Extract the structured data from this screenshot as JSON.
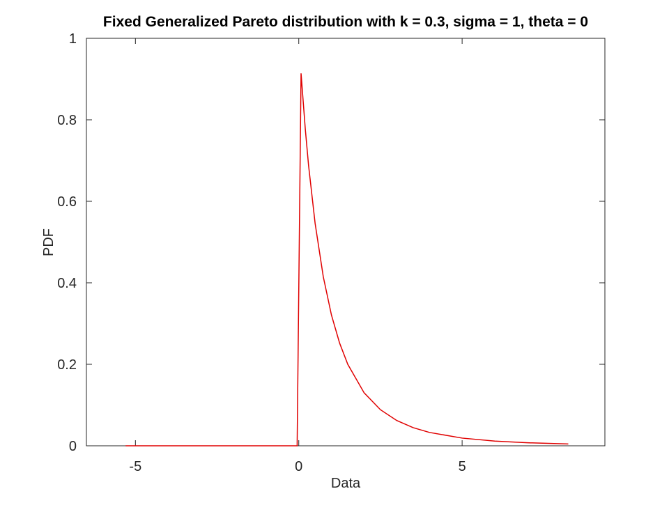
{
  "chart_data": {
    "type": "line",
    "title": "Fixed Generalized Pareto distribution with k = 0.3, sigma = 1, theta = 0",
    "xlabel": "Data",
    "ylabel": "PDF",
    "x": [
      -5.3,
      -0.05,
      0.07,
      0.2,
      0.3,
      0.5,
      0.75,
      1,
      1.25,
      1.5,
      2,
      2.5,
      3,
      3.5,
      4,
      5,
      6,
      7,
      8.25
    ],
    "values": [
      0,
      0,
      0.914,
      0.777,
      0.688,
      0.546,
      0.415,
      0.321,
      0.252,
      0.2,
      0.13,
      0.0885,
      0.062,
      0.0446,
      0.0328,
      0.0189,
      0.0115,
      0.00743,
      0.00453
    ],
    "color": "#e00000",
    "xlim": [
      -6.5,
      9.37
    ],
    "ylim": [
      0,
      1
    ],
    "xticks": [
      -5,
      0,
      5
    ],
    "yticks": [
      0,
      0.2,
      0.4,
      0.6,
      0.8,
      1
    ]
  }
}
